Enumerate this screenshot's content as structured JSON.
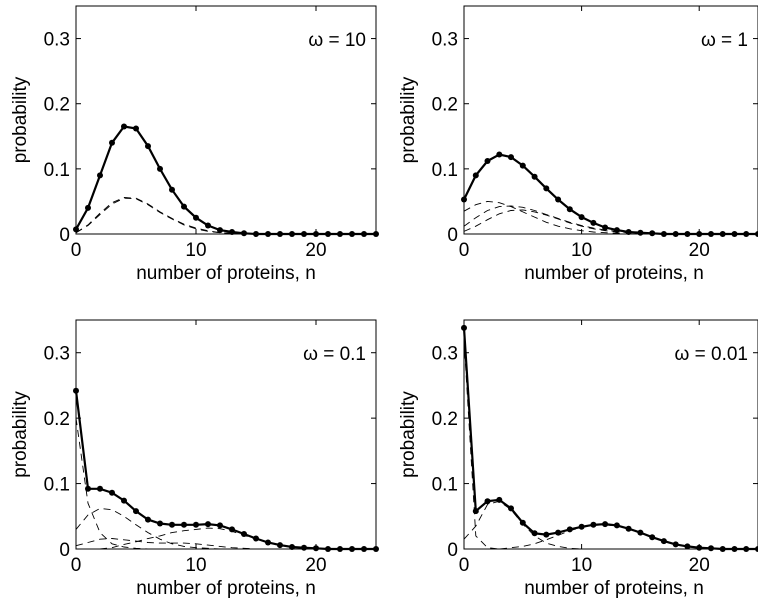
{
  "chart_data": [
    {
      "type": "line",
      "title": "",
      "annotation": "ω = 10",
      "xlabel": "number of proteins, n",
      "ylabel": "probability",
      "xlim": [
        0,
        25
      ],
      "ylim": [
        0,
        0.35
      ],
      "xticks": [
        "0",
        "10",
        "20"
      ],
      "yticks": [
        "0",
        "0.1",
        "0.2",
        "0.3"
      ],
      "grid": false,
      "series": [
        {
          "style": "solid-markers",
          "x": [
            0,
            1,
            2,
            3,
            4,
            5,
            6,
            7,
            8,
            9,
            10,
            11,
            12,
            13,
            14,
            15,
            16,
            17,
            18,
            19,
            20,
            21,
            22,
            23,
            24,
            25
          ],
          "values": [
            0.007,
            0.04,
            0.09,
            0.14,
            0.165,
            0.162,
            0.135,
            0.1,
            0.068,
            0.042,
            0.025,
            0.013,
            0.006,
            0.003,
            0.001,
            0,
            0,
            0,
            0,
            0,
            0,
            0,
            0,
            0,
            0,
            0
          ]
        },
        {
          "style": "dashed",
          "x": [
            0,
            1,
            2,
            3,
            4,
            5,
            6,
            7,
            8,
            9,
            10,
            11,
            12,
            13,
            14,
            15,
            16,
            17,
            18,
            19,
            20,
            21,
            22,
            23,
            24,
            25
          ],
          "values": [
            0.002,
            0.013,
            0.03,
            0.046,
            0.055,
            0.054,
            0.045,
            0.033,
            0.023,
            0.014,
            0.008,
            0.004,
            0.002,
            0.001,
            0,
            0,
            0,
            0,
            0,
            0,
            0,
            0,
            0,
            0,
            0,
            0
          ]
        },
        {
          "style": "dashed",
          "x": [
            0,
            1,
            2,
            3,
            4,
            5,
            6,
            7,
            8,
            9,
            10,
            11,
            12,
            13,
            14,
            15,
            16,
            17,
            18,
            19,
            20,
            21,
            22,
            23,
            24,
            25
          ],
          "values": [
            0.002,
            0.014,
            0.032,
            0.048,
            0.056,
            0.055,
            0.046,
            0.034,
            0.024,
            0.015,
            0.009,
            0.005,
            0.002,
            0.001,
            0,
            0,
            0,
            0,
            0,
            0,
            0,
            0,
            0,
            0,
            0,
            0
          ]
        }
      ]
    },
    {
      "type": "line",
      "title": "",
      "annotation": "ω = 1",
      "xlabel": "number of proteins, n",
      "ylabel": "probability",
      "xlim": [
        0,
        25
      ],
      "ylim": [
        0,
        0.35
      ],
      "xticks": [
        "0",
        "10",
        "20"
      ],
      "yticks": [
        "0",
        "0.1",
        "0.2",
        "0.3"
      ],
      "grid": false,
      "series": [
        {
          "style": "solid-markers",
          "x": [
            0,
            1,
            2,
            3,
            4,
            5,
            6,
            7,
            8,
            9,
            10,
            11,
            12,
            13,
            14,
            15,
            16,
            17,
            18,
            19,
            20,
            21,
            22,
            23,
            24,
            25
          ],
          "values": [
            0.053,
            0.09,
            0.112,
            0.122,
            0.118,
            0.105,
            0.088,
            0.07,
            0.053,
            0.038,
            0.026,
            0.017,
            0.01,
            0.006,
            0.003,
            0.002,
            0.001,
            0,
            0,
            0,
            0,
            0,
            0,
            0,
            0,
            0
          ]
        },
        {
          "style": "dashed",
          "x": [
            0,
            1,
            2,
            3,
            4,
            5,
            6,
            7,
            8,
            9,
            10,
            11,
            12,
            13,
            14,
            15,
            16,
            17,
            18,
            19,
            20,
            21,
            22,
            23,
            24,
            25
          ],
          "values": [
            0.035,
            0.045,
            0.05,
            0.048,
            0.042,
            0.034,
            0.026,
            0.018,
            0.012,
            0.008,
            0.005,
            0.003,
            0.002,
            0.001,
            0,
            0,
            0,
            0,
            0,
            0,
            0,
            0,
            0,
            0,
            0,
            0
          ]
        },
        {
          "style": "dashed",
          "x": [
            0,
            1,
            2,
            3,
            4,
            5,
            6,
            7,
            8,
            9,
            10,
            11,
            12,
            13,
            14,
            15,
            16,
            17,
            18,
            19,
            20,
            21,
            22,
            23,
            24,
            25
          ],
          "values": [
            0.012,
            0.025,
            0.036,
            0.042,
            0.043,
            0.041,
            0.036,
            0.03,
            0.024,
            0.018,
            0.013,
            0.009,
            0.006,
            0.004,
            0.002,
            0.001,
            0.001,
            0,
            0,
            0,
            0,
            0,
            0,
            0,
            0,
            0
          ]
        },
        {
          "style": "dashed",
          "x": [
            0,
            1,
            2,
            3,
            4,
            5,
            6,
            7,
            8,
            9,
            10,
            11,
            12,
            13,
            14,
            15,
            16,
            17,
            18,
            19,
            20,
            21,
            22,
            23,
            24,
            25
          ],
          "values": [
            0.004,
            0.012,
            0.022,
            0.031,
            0.036,
            0.037,
            0.034,
            0.029,
            0.023,
            0.017,
            0.012,
            0.008,
            0.005,
            0.003,
            0.002,
            0.001,
            0,
            0,
            0,
            0,
            0,
            0,
            0,
            0,
            0,
            0
          ]
        }
      ]
    },
    {
      "type": "line",
      "title": "",
      "annotation": "ω = 0.1",
      "xlabel": "number of proteins, n",
      "ylabel": "probability",
      "xlim": [
        0,
        25
      ],
      "ylim": [
        0,
        0.35
      ],
      "xticks": [
        "0",
        "10",
        "20"
      ],
      "yticks": [
        "0",
        "0.1",
        "0.2",
        "0.3"
      ],
      "grid": false,
      "series": [
        {
          "style": "solid-markers",
          "x": [
            0,
            1,
            2,
            3,
            4,
            5,
            6,
            7,
            8,
            9,
            10,
            11,
            12,
            13,
            14,
            15,
            16,
            17,
            18,
            19,
            20,
            21,
            22,
            23,
            24,
            25
          ],
          "values": [
            0.242,
            0.092,
            0.092,
            0.086,
            0.074,
            0.058,
            0.045,
            0.039,
            0.037,
            0.037,
            0.037,
            0.038,
            0.036,
            0.03,
            0.023,
            0.016,
            0.01,
            0.006,
            0.003,
            0.002,
            0.001,
            0,
            0,
            0,
            0,
            0
          ]
        },
        {
          "style": "dashed",
          "x": [
            0,
            1,
            2,
            3,
            4,
            5,
            6,
            7,
            8,
            9,
            10,
            11,
            12,
            13,
            14,
            15,
            16,
            17,
            18,
            19,
            20,
            21,
            22,
            23,
            24,
            25
          ],
          "values": [
            0.2,
            0.07,
            0.025,
            0.008,
            0.003,
            0.001,
            0,
            0,
            0,
            0,
            0,
            0,
            0,
            0,
            0,
            0,
            0,
            0,
            0,
            0,
            0,
            0,
            0,
            0,
            0,
            0
          ]
        },
        {
          "style": "dashed",
          "x": [
            0,
            1,
            2,
            3,
            4,
            5,
            6,
            7,
            8,
            9,
            10,
            11,
            12,
            13,
            14,
            15,
            16,
            17,
            18,
            19,
            20,
            21,
            22,
            23,
            24,
            25
          ],
          "values": [
            0.03,
            0.052,
            0.062,
            0.06,
            0.05,
            0.037,
            0.025,
            0.015,
            0.008,
            0.004,
            0.002,
            0.001,
            0,
            0,
            0,
            0,
            0,
            0,
            0,
            0,
            0,
            0,
            0,
            0,
            0,
            0
          ]
        },
        {
          "style": "dashed",
          "x": [
            0,
            1,
            2,
            3,
            4,
            5,
            6,
            7,
            8,
            9,
            10,
            11,
            12,
            13,
            14,
            15,
            16,
            17,
            18,
            19,
            20,
            21,
            22,
            23,
            24,
            25
          ],
          "values": [
            0.005,
            0.01,
            0.015,
            0.016,
            0.014,
            0.012,
            0.01,
            0.009,
            0.009,
            0.009,
            0.008,
            0.006,
            0.004,
            0.002,
            0.001,
            0,
            0,
            0,
            0,
            0,
            0,
            0,
            0,
            0,
            0,
            0
          ]
        },
        {
          "style": "dashed",
          "x": [
            0,
            1,
            2,
            3,
            4,
            5,
            6,
            7,
            8,
            9,
            10,
            11,
            12,
            13,
            14,
            15,
            16,
            17,
            18,
            19,
            20,
            21,
            22,
            23,
            24,
            25
          ],
          "values": [
            0,
            0,
            0,
            0.002,
            0.007,
            0.011,
            0.016,
            0.02,
            0.025,
            0.028,
            0.03,
            0.032,
            0.031,
            0.027,
            0.021,
            0.015,
            0.01,
            0.006,
            0.003,
            0.002,
            0.001,
            0,
            0,
            0,
            0,
            0
          ]
        }
      ]
    },
    {
      "type": "line",
      "title": "",
      "annotation": "ω = 0.01",
      "xlabel": "number of proteins, n",
      "ylabel": "probability",
      "xlim": [
        0,
        25
      ],
      "ylim": [
        0,
        0.35
      ],
      "xticks": [
        "0",
        "10",
        "20"
      ],
      "yticks": [
        "0",
        "0.1",
        "0.2",
        "0.3"
      ],
      "grid": false,
      "series": [
        {
          "style": "solid-markers",
          "x": [
            0,
            1,
            2,
            3,
            4,
            5,
            6,
            7,
            8,
            9,
            10,
            11,
            12,
            13,
            14,
            15,
            16,
            17,
            18,
            19,
            20,
            21,
            22,
            23,
            24,
            25
          ],
          "values": [
            0.338,
            0.058,
            0.073,
            0.075,
            0.062,
            0.04,
            0.024,
            0.022,
            0.025,
            0.03,
            0.034,
            0.037,
            0.038,
            0.036,
            0.031,
            0.025,
            0.018,
            0.012,
            0.007,
            0.004,
            0.002,
            0.001,
            0,
            0,
            0,
            0
          ]
        },
        {
          "style": "dashed",
          "x": [
            0,
            1,
            2,
            3,
            4,
            5,
            6,
            7,
            8,
            9,
            10,
            11,
            12,
            13,
            14,
            15,
            16,
            17,
            18,
            19,
            20,
            21,
            22,
            23,
            24,
            25
          ],
          "values": [
            0.32,
            0.02,
            0.002,
            0,
            0,
            0,
            0,
            0,
            0,
            0,
            0,
            0,
            0,
            0,
            0,
            0,
            0,
            0,
            0,
            0,
            0,
            0,
            0,
            0,
            0,
            0
          ]
        },
        {
          "style": "dashed",
          "x": [
            0,
            1,
            2,
            3,
            4,
            5,
            6,
            7,
            8,
            9,
            10,
            11,
            12,
            13,
            14,
            15,
            16,
            17,
            18,
            19,
            20,
            21,
            22,
            23,
            24,
            25
          ],
          "values": [
            0.015,
            0.035,
            0.068,
            0.073,
            0.06,
            0.038,
            0.02,
            0.009,
            0.004,
            0.001,
            0,
            0,
            0,
            0,
            0,
            0,
            0,
            0,
            0,
            0,
            0,
            0,
            0,
            0,
            0,
            0
          ]
        },
        {
          "style": "dashed",
          "x": [
            0,
            1,
            2,
            3,
            4,
            5,
            6,
            7,
            8,
            9,
            10,
            11,
            12,
            13,
            14,
            15,
            16,
            17,
            18,
            19,
            20,
            21,
            22,
            23,
            24,
            25
          ],
          "values": [
            0,
            0,
            0,
            0,
            0.002,
            0.004,
            0.008,
            0.014,
            0.021,
            0.028,
            0.033,
            0.036,
            0.037,
            0.035,
            0.031,
            0.025,
            0.018,
            0.012,
            0.007,
            0.004,
            0.002,
            0.001,
            0,
            0,
            0,
            0
          ]
        }
      ]
    }
  ]
}
